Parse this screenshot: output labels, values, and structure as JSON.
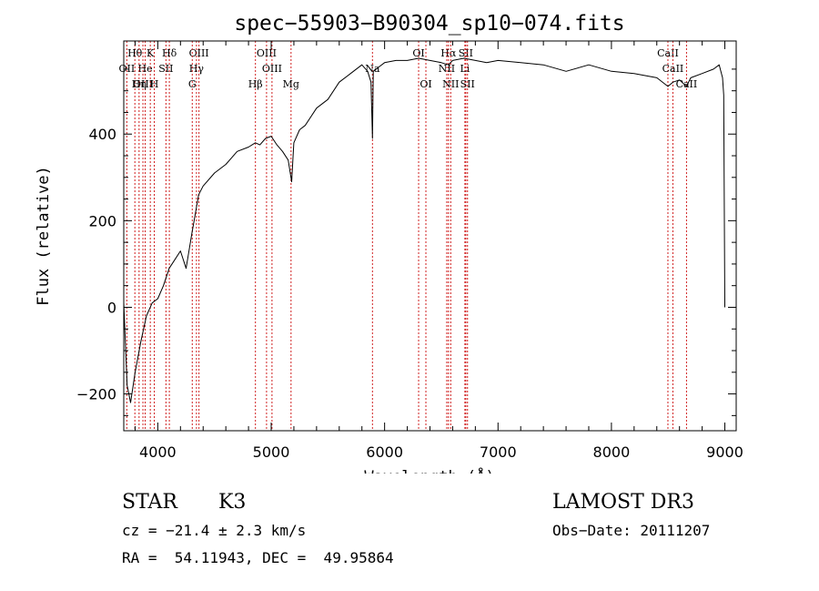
{
  "chart_data": {
    "type": "line",
    "title": "spec−55903−B90304_sp10−074.fits",
    "xlabel": "Wavelength (Å)",
    "ylabel": "Flux (relative)",
    "xlim": [
      3700,
      9100
    ],
    "ylim": [
      -285,
      615
    ],
    "x_ticks": [
      4000,
      5000,
      6000,
      7000,
      8000,
      9000
    ],
    "x_tick_labels": [
      "4000",
      "5000",
      "6000",
      "7000",
      "8000",
      "9000"
    ],
    "y_ticks": [
      -200,
      0,
      200,
      400
    ],
    "y_tick_labels": [
      "−200",
      "0",
      "200",
      "400"
    ],
    "series": [
      {
        "name": "flux",
        "x": [
          3700,
          3730,
          3760,
          3800,
          3850,
          3900,
          3950,
          4000,
          4050,
          4100,
          4150,
          4200,
          4250,
          4300,
          4320,
          4340,
          4360,
          4400,
          4500,
          4600,
          4700,
          4800,
          4860,
          4900,
          4950,
          5000,
          5050,
          5100,
          5150,
          5180,
          5200,
          5250,
          5300,
          5400,
          5500,
          5600,
          5700,
          5800,
          5850,
          5880,
          5893,
          5900,
          5950,
          6000,
          6100,
          6200,
          6300,
          6400,
          6500,
          6563,
          6600,
          6700,
          6800,
          6900,
          7000,
          7200,
          7400,
          7600,
          7800,
          8000,
          8200,
          8400,
          8498,
          8542,
          8600,
          8662,
          8700,
          8800,
          8900,
          8950,
          8980,
          8990,
          9000
        ],
        "y": [
          10,
          -180,
          -220,
          -150,
          -80,
          -20,
          10,
          20,
          50,
          90,
          110,
          130,
          90,
          170,
          200,
          230,
          260,
          280,
          310,
          330,
          360,
          370,
          380,
          375,
          390,
          395,
          375,
          360,
          340,
          290,
          380,
          410,
          420,
          460,
          480,
          520,
          540,
          560,
          545,
          520,
          390,
          545,
          555,
          565,
          570,
          570,
          575,
          570,
          565,
          560,
          570,
          575,
          570,
          565,
          570,
          565,
          560,
          545,
          560,
          545,
          540,
          530,
          510,
          520,
          525,
          510,
          530,
          540,
          550,
          560,
          530,
          490,
          0
        ]
      }
    ],
    "line_markers": [
      {
        "label": "Hθ",
        "x": 3798,
        "row": 1
      },
      {
        "label": "OII",
        "x": 3727,
        "row": 2
      },
      {
        "label": "OIII",
        "x": 3869,
        "row": 3
      },
      {
        "label": "He",
        "x": 3889,
        "row": 2
      },
      {
        "label": "Hη",
        "x": 3835,
        "row": 3
      },
      {
        "label": "K",
        "x": 3934,
        "row": 1
      },
      {
        "label": "SII",
        "x": 4072,
        "row": 2
      },
      {
        "label": "H",
        "x": 3969,
        "row": 3
      },
      {
        "label": "Hδ",
        "x": 4102,
        "row": 1
      },
      {
        "label": "OIII",
        "x": 4363,
        "row": 1
      },
      {
        "label": "Hγ",
        "x": 4341,
        "row": 2
      },
      {
        "label": "G",
        "x": 4304,
        "row": 3
      },
      {
        "label": "Hβ",
        "x": 4861,
        "row": 3
      },
      {
        "label": "OIII",
        "x": 4959,
        "row": 1
      },
      {
        "label": "OIII",
        "x": 5007,
        "row": 2
      },
      {
        "label": "Mg",
        "x": 5175,
        "row": 3
      },
      {
        "label": "Na",
        "x": 5893,
        "row": 2
      },
      {
        "label": "OI",
        "x": 6300,
        "row": 1
      },
      {
        "label": "OI",
        "x": 6364,
        "row": 3
      },
      {
        "label": "Hα",
        "x": 6563,
        "row": 1
      },
      {
        "label": "NII",
        "x": 6548,
        "row": 2
      },
      {
        "label": "NII",
        "x": 6583,
        "row": 3
      },
      {
        "label": "SII",
        "x": 6716,
        "row": 1
      },
      {
        "label": "Li",
        "x": 6708,
        "row": 2
      },
      {
        "label": "SII",
        "x": 6731,
        "row": 3
      },
      {
        "label": "CaII",
        "x": 8498,
        "row": 1
      },
      {
        "label": "CaII",
        "x": 8542,
        "row": 2
      },
      {
        "label": "CaII",
        "x": 8662,
        "row": 3
      }
    ]
  },
  "info": {
    "object_class": "STAR",
    "subclass": "K3",
    "survey": "LAMOST DR3",
    "cz": "cz = −21.4 ± 2.3 km/s",
    "obs_date": "Obs−Date: 20111207",
    "coords": "RA =  54.11943, DEC =  49.95864"
  }
}
